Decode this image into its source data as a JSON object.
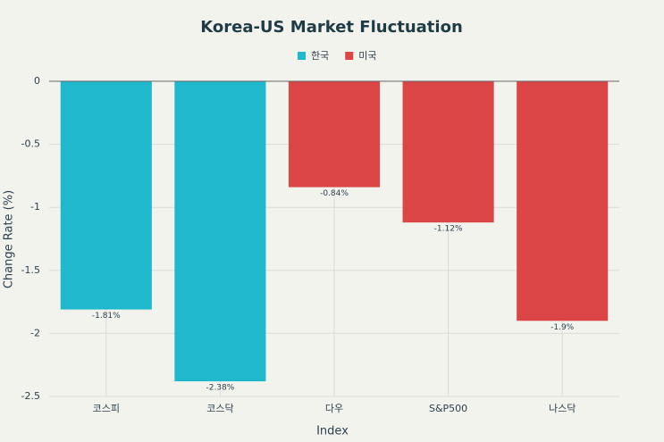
{
  "chart_data": {
    "type": "bar",
    "title": "Korea-US Market Fluctuation",
    "categories": [
      "코스피",
      "코스닥",
      "다우",
      "S&P500",
      "나스닥"
    ],
    "series": [
      {
        "name": "한국",
        "color": "#1fb8cd",
        "values": [
          -1.81,
          -2.38,
          null,
          null,
          null
        ],
        "value_labels": [
          "-1.81%",
          "-2.38%",
          null,
          null,
          null
        ]
      },
      {
        "name": "미국",
        "color": "#db4545",
        "values": [
          null,
          null,
          -0.84,
          -1.12,
          -1.9
        ],
        "value_labels": [
          null,
          null,
          "-0.84%",
          "-1.12%",
          "-1.9%"
        ]
      }
    ],
    "x_label": "Index",
    "y_label": "Change Rate (%)",
    "ylim": [
      -2.5,
      0
    ],
    "yticks": [
      0,
      -0.5,
      -1,
      -1.5,
      -2,
      -2.5
    ],
    "grid": true,
    "legend": "top"
  }
}
